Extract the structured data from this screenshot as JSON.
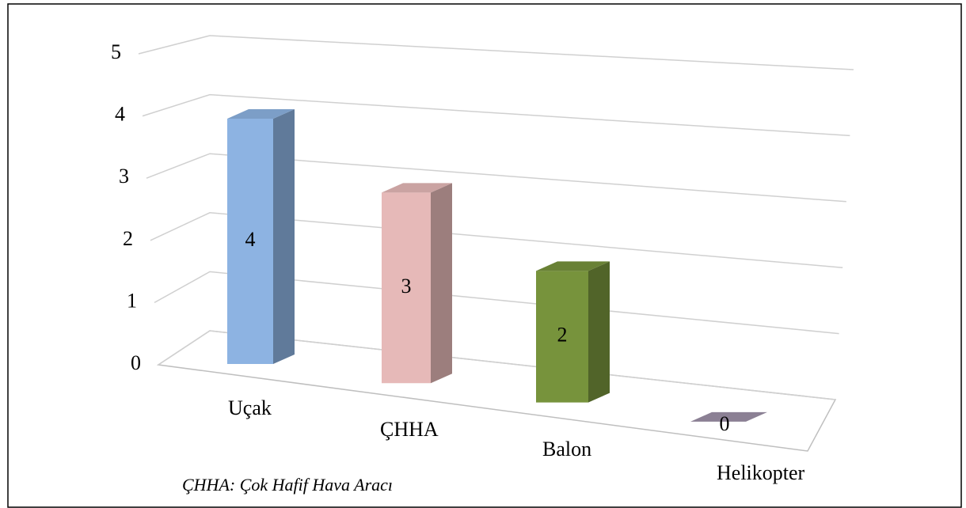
{
  "chart_data": {
    "type": "bar3d",
    "categories": [
      "Uçak",
      "ÇHHA",
      "Balon",
      "Helikopter"
    ],
    "values": [
      4,
      3,
      2,
      0
    ],
    "colors": [
      "#8db3e2",
      "#e6b9b8",
      "#77933c",
      "#9e92a8"
    ],
    "ylim": [
      0,
      5
    ],
    "yticks": [
      0,
      1,
      2,
      3,
      4,
      5
    ],
    "grid": true,
    "annotation": "ÇHHA: Çok Hafif Hava Aracı"
  }
}
